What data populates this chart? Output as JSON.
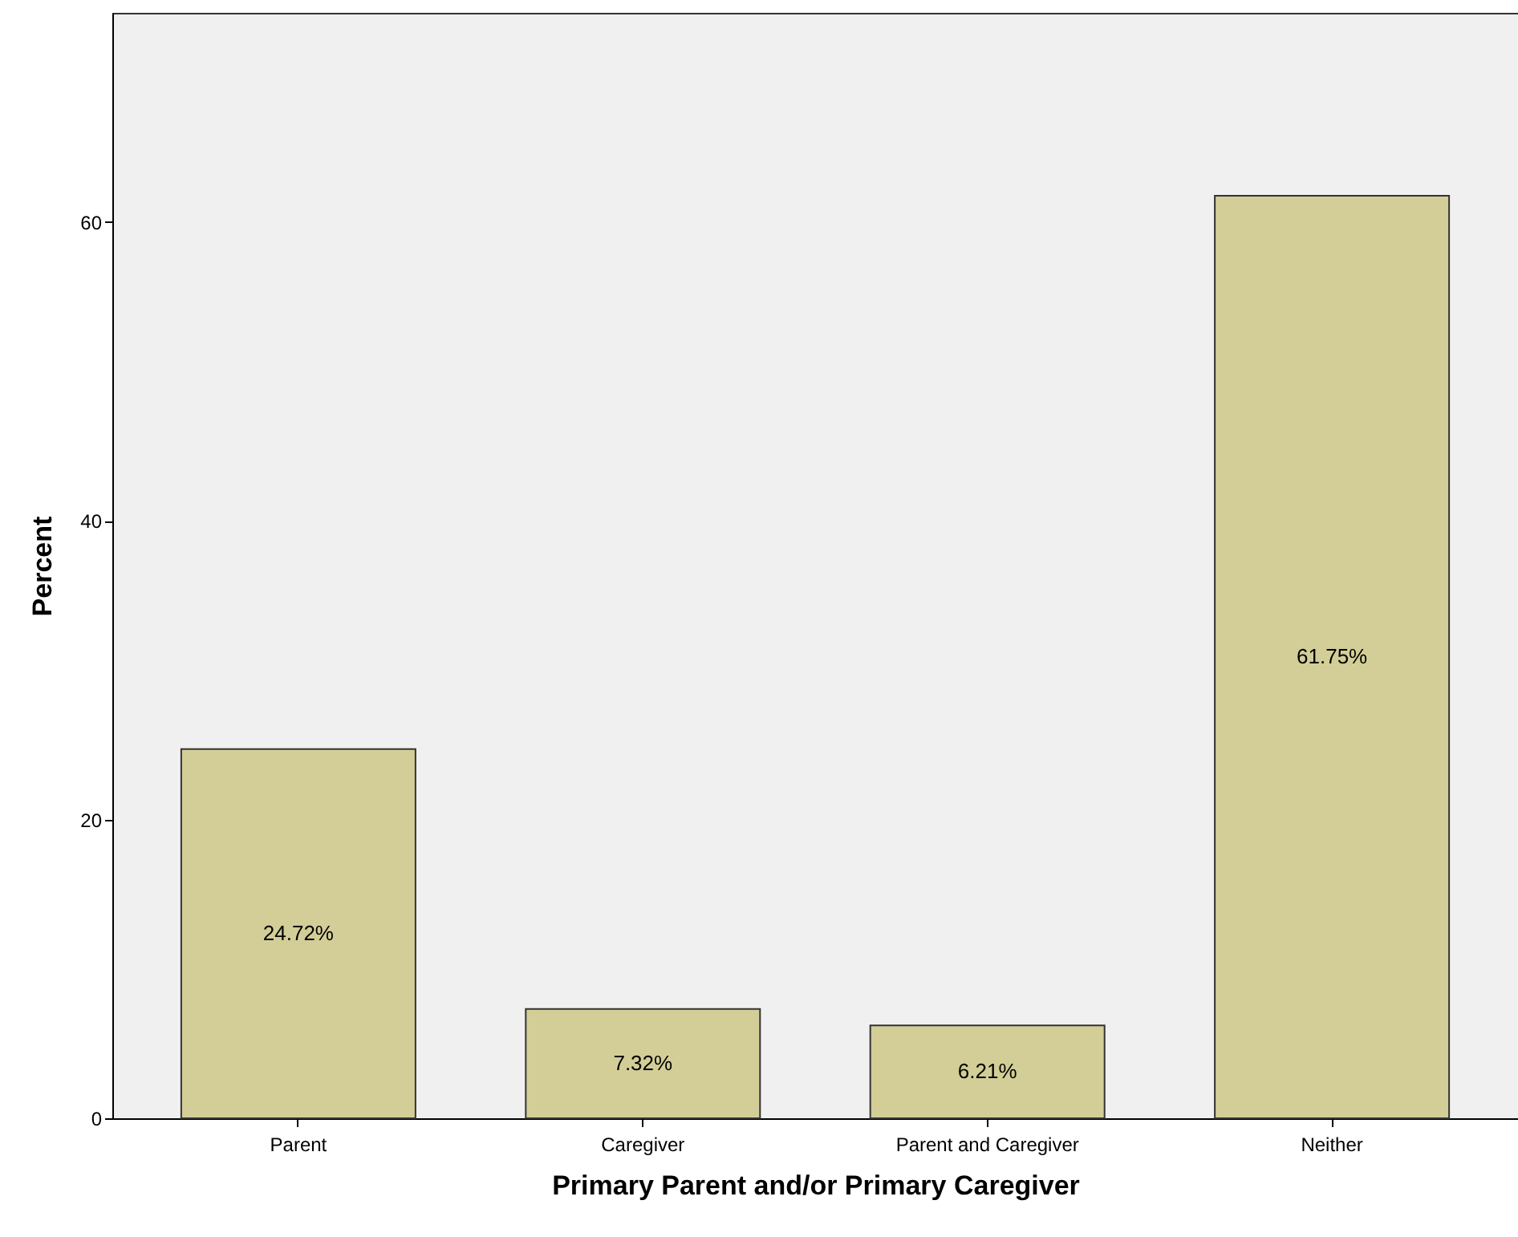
{
  "chart_data": {
    "type": "bar",
    "xlabel": "Primary Parent and/or Primary Caregiver",
    "ylabel": "Percent",
    "categories": [
      "Parent",
      "Caregiver",
      "Parent and Caregiver",
      "Neither"
    ],
    "values": [
      24.72,
      7.32,
      6.21,
      61.75
    ],
    "value_labels": [
      "24.72%",
      "7.32%",
      "6.21%",
      "61.75%"
    ],
    "color": "#d3ce97",
    "ylim": [
      0,
      74
    ],
    "yticks": [
      0,
      20,
      40,
      60
    ],
    "grid": false
  }
}
